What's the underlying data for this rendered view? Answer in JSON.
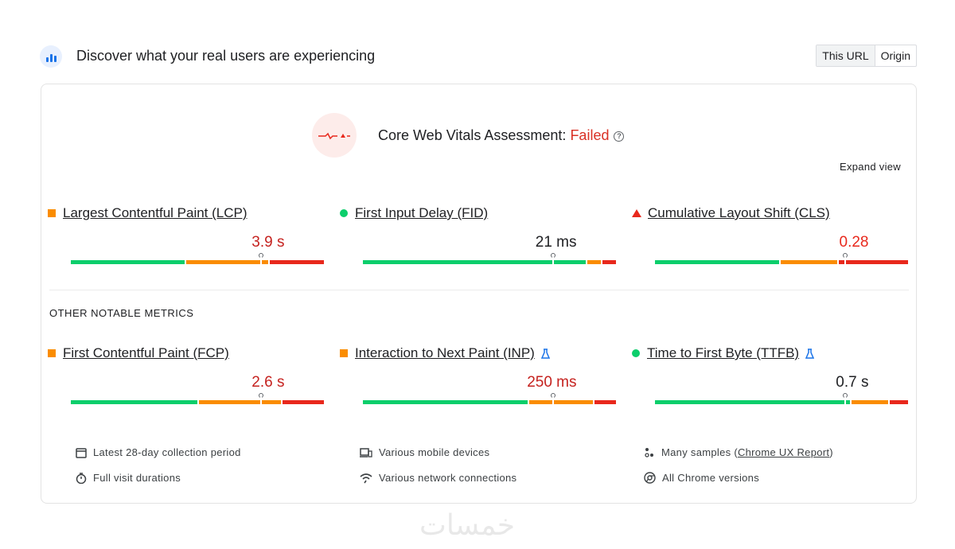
{
  "header": {
    "title": "Discover what your real users are experiencing",
    "toggle": [
      "This URL",
      "Origin"
    ],
    "active_toggle": "This URL"
  },
  "assessment": {
    "prefix": "Core Web Vitals Assessment: ",
    "status": "Failed",
    "expand_label": "Expand view"
  },
  "core_metrics": [
    {
      "name": "Largest Contentful Paint (LCP)",
      "value": "3.9 s",
      "status": "needs-improvement",
      "icon": "orange-square-icon",
      "value_color": "#c5221f",
      "distribution": [
        0.45,
        0.33,
        0.22
      ],
      "marker": 0.75,
      "experimental": false
    },
    {
      "name": "First Input Delay (FID)",
      "value": "21 ms",
      "status": "good",
      "icon": "green-circle-icon",
      "value_color": "#202124",
      "distribution": [
        0.88,
        0.06,
        0.06
      ],
      "marker": 0.75,
      "experimental": false
    },
    {
      "name": "Cumulative Layout Shift (CLS)",
      "value": "0.28",
      "status": "poor",
      "icon": "red-triangle-icon",
      "value_color": "#e8281c",
      "distribution": [
        0.49,
        0.23,
        0.28
      ],
      "marker": 0.75,
      "experimental": false
    }
  ],
  "other_heading": "OTHER NOTABLE METRICS",
  "other_metrics": [
    {
      "name": "First Contentful Paint (FCP)",
      "value": "2.6 s",
      "status": "needs-improvement",
      "icon": "orange-square-icon",
      "value_color": "#c5221f",
      "distribution": [
        0.5,
        0.33,
        0.17
      ],
      "marker": 0.75,
      "experimental": false
    },
    {
      "name": "Interaction to Next Paint (INP)",
      "value": "250 ms",
      "status": "needs-improvement",
      "icon": "orange-square-icon",
      "value_color": "#c5221f",
      "distribution": [
        0.65,
        0.26,
        0.09
      ],
      "marker": 0.75,
      "experimental": true
    },
    {
      "name": "Time to First Byte (TTFB)",
      "value": "0.7 s",
      "status": "good",
      "icon": "green-circle-icon",
      "value_color": "#202124",
      "distribution": [
        0.77,
        0.15,
        0.08
      ],
      "marker": 0.75,
      "experimental": true
    }
  ],
  "footer": [
    {
      "icon": "calendar-icon",
      "text": "Latest 28-day collection period"
    },
    {
      "icon": "devices-icon",
      "text": "Various mobile devices"
    },
    {
      "icon": "samples-icon",
      "text_before": "Many samples (",
      "link": "Chrome UX Report",
      "text_after": ")"
    },
    {
      "icon": "stopwatch-icon",
      "text": "Full visit durations"
    },
    {
      "icon": "wifi-icon",
      "text": "Various network connections"
    },
    {
      "icon": "chrome-icon",
      "text": "All Chrome versions"
    }
  ],
  "watermark": "خمسات",
  "colors": {
    "good": "#0cce6b",
    "average": "#fa8c00",
    "poor": "#e8281c",
    "lab_flask": "#1a73e8"
  }
}
